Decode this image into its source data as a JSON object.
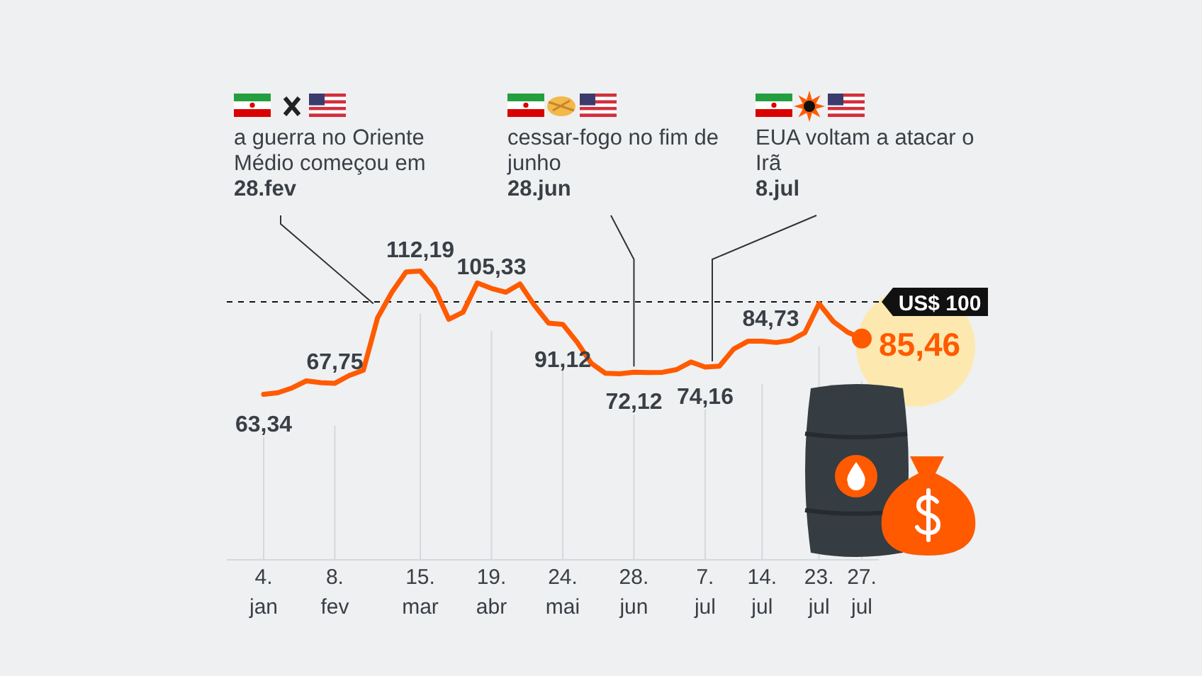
{
  "chart_data": {
    "type": "line",
    "categories": [
      "4. jan",
      null,
      null,
      null,
      null,
      "8. fev",
      null,
      null,
      null,
      null,
      null,
      "15. mar",
      null,
      null,
      null,
      null,
      "19. abr",
      null,
      null,
      null,
      null,
      "24. mai",
      null,
      null,
      null,
      null,
      "28. jun",
      null,
      null,
      null,
      null,
      "7. jul",
      null,
      null,
      null,
      "14. jul",
      null,
      null,
      null,
      "23. jul",
      null,
      null,
      "27. jul"
    ],
    "series": [
      {
        "color": "#ff5a00",
        "values": [
          63.34,
          64.0,
          65.9,
          68.7,
          68.0,
          67.75,
          70.8,
          72.9,
          93.7,
          103.8,
          111.9,
          112.19,
          105.4,
          93.1,
          95.9,
          107.5,
          105.33,
          103.8,
          107.1,
          98.7,
          91.6,
          91.12,
          84.1,
          75.7,
          71.7,
          71.5,
          72.12,
          72.0,
          72.1,
          73.2,
          76.2,
          74.16,
          74.5,
          81.3,
          84.4,
          84.4,
          83.9,
          84.73,
          87.8,
          99.3,
          92.2,
          88.0,
          85.46
        ],
        "value_labels": [
          "63,34",
          null,
          null,
          null,
          null,
          "67,75",
          null,
          null,
          null,
          null,
          null,
          "112,19",
          null,
          null,
          null,
          null,
          "105,33",
          null,
          null,
          null,
          null,
          "91,12",
          null,
          null,
          null,
          null,
          "72,12",
          null,
          null,
          null,
          null,
          "74,16",
          null,
          null,
          null,
          null,
          null,
          "84,73",
          null,
          null,
          null,
          null,
          "85,46"
        ]
      }
    ],
    "ref_lines": [
      {
        "axis": "y",
        "value": 100,
        "label": "US$ 100",
        "line_style": "dashed",
        "color": "#111111"
      }
    ],
    "annotations": [
      "a guerra no Oriente\nMédio começou em\n28.fev",
      "cessar-fogo no fim de\njunho\n28.jun",
      "EUA voltam a atacar o\nIrã\n8.jul"
    ],
    "grid": "x",
    "tick_labels": "x",
    "marker": "none",
    "line_style": "solid"
  }
}
